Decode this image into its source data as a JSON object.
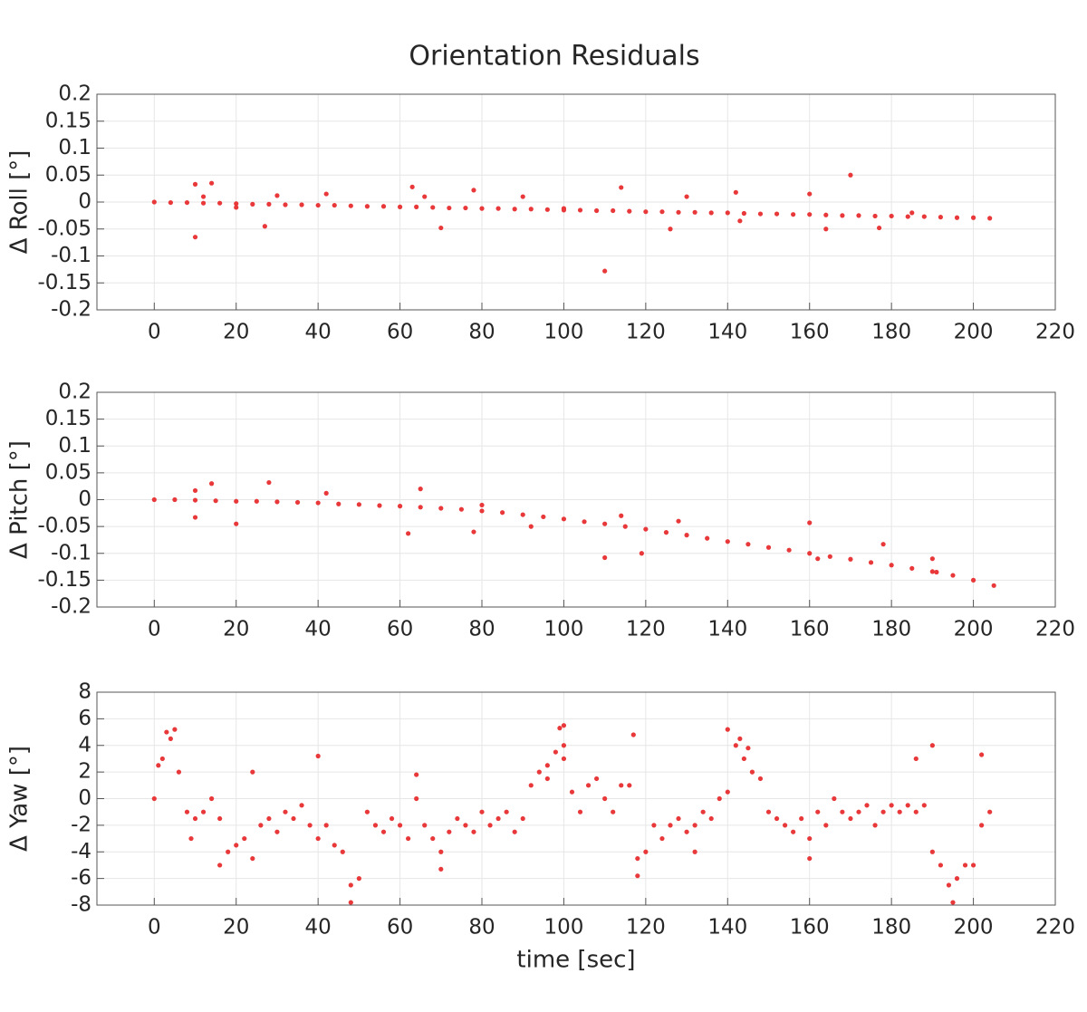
{
  "chart_data": [
    {
      "type": "scatter",
      "title": "Orientation Residuals",
      "ylabel": "Δ Roll [°]",
      "color": "#e8383a",
      "grid": true,
      "xlim": [
        -14,
        220
      ],
      "xticks": [
        0,
        20,
        40,
        60,
        80,
        100,
        120,
        140,
        160,
        180,
        200,
        220
      ],
      "ylim": [
        -0.2,
        0.2
      ],
      "yticks": [
        0.2,
        0.15,
        0.1,
        0.05,
        0,
        -0.05,
        -0.1,
        -0.15,
        -0.2
      ],
      "x": [
        0,
        4,
        8,
        12,
        16,
        20,
        24,
        28,
        32,
        36,
        40,
        44,
        48,
        52,
        56,
        60,
        64,
        68,
        72,
        76,
        80,
        84,
        88,
        92,
        96,
        100,
        104,
        108,
        112,
        116,
        120,
        124,
        128,
        132,
        136,
        140,
        144,
        148,
        152,
        156,
        160,
        164,
        168,
        172,
        176,
        180,
        184,
        188,
        192,
        196,
        200,
        204,
        10,
        10,
        14,
        27,
        30,
        42,
        63,
        70,
        78,
        110,
        114,
        126,
        142,
        143,
        160,
        164,
        170,
        177,
        12,
        20,
        66,
        90,
        100,
        130,
        185
      ],
      "values": [
        0,
        -0.001,
        -0.001,
        -0.002,
        -0.002,
        -0.003,
        -0.004,
        -0.004,
        -0.005,
        -0.005,
        -0.006,
        -0.006,
        -0.007,
        -0.008,
        -0.008,
        -0.009,
        -0.009,
        -0.01,
        -0.011,
        -0.011,
        -0.012,
        -0.012,
        -0.013,
        -0.013,
        -0.014,
        -0.015,
        -0.015,
        -0.016,
        -0.016,
        -0.017,
        -0.018,
        -0.018,
        -0.019,
        -0.019,
        -0.02,
        -0.02,
        -0.021,
        -0.022,
        -0.022,
        -0.023,
        -0.023,
        -0.024,
        -0.025,
        -0.025,
        -0.026,
        -0.026,
        -0.027,
        -0.027,
        -0.028,
        -0.029,
        -0.029,
        -0.03,
        0.033,
        -0.065,
        0.035,
        -0.045,
        0.012,
        0.015,
        0.028,
        -0.048,
        0.022,
        -0.128,
        0.027,
        -0.05,
        0.018,
        -0.035,
        0.015,
        -0.05,
        0.05,
        -0.048,
        0.01,
        -0.01,
        0.01,
        0.01,
        -0.012,
        0.01,
        -0.02
      ]
    },
    {
      "type": "scatter",
      "ylabel": "Δ Pitch [°]",
      "color": "#e8383a",
      "grid": true,
      "xlim": [
        -14,
        220
      ],
      "xticks": [
        0,
        20,
        40,
        60,
        80,
        100,
        120,
        140,
        160,
        180,
        200,
        220
      ],
      "ylim": [
        -0.2,
        0.2
      ],
      "yticks": [
        0.2,
        0.15,
        0.1,
        0.05,
        0,
        -0.05,
        -0.1,
        -0.15,
        -0.2
      ],
      "x": [
        0,
        5,
        10,
        15,
        20,
        25,
        30,
        35,
        40,
        45,
        50,
        55,
        60,
        65,
        70,
        75,
        80,
        85,
        90,
        95,
        100,
        105,
        110,
        115,
        120,
        125,
        130,
        135,
        140,
        145,
        150,
        155,
        160,
        165,
        170,
        175,
        180,
        185,
        190,
        195,
        200,
        205,
        10,
        10,
        14,
        20,
        28,
        42,
        62,
        65,
        78,
        80,
        92,
        110,
        114,
        119,
        128,
        160,
        162,
        178,
        190,
        191
      ],
      "values": [
        0,
        0,
        -0.001,
        -0.002,
        -0.003,
        -0.003,
        -0.004,
        -0.005,
        -0.006,
        -0.008,
        -0.009,
        -0.011,
        -0.012,
        -0.014,
        -0.016,
        -0.018,
        -0.021,
        -0.024,
        -0.028,
        -0.032,
        -0.036,
        -0.041,
        -0.045,
        -0.05,
        -0.055,
        -0.061,
        -0.066,
        -0.072,
        -0.078,
        -0.083,
        -0.089,
        -0.094,
        -0.1,
        -0.106,
        -0.111,
        -0.117,
        -0.122,
        -0.128,
        -0.134,
        -0.141,
        -0.15,
        -0.16,
        0.017,
        -0.033,
        0.03,
        -0.045,
        0.032,
        0.012,
        -0.063,
        0.02,
        -0.06,
        -0.01,
        -0.05,
        -0.108,
        -0.03,
        -0.1,
        -0.04,
        -0.043,
        -0.11,
        -0.083,
        -0.11,
        -0.135
      ]
    },
    {
      "type": "scatter",
      "ylabel": "Δ Yaw [°]",
      "xlabel": "time [sec]",
      "color": "#e8383a",
      "grid": true,
      "xlim": [
        -14,
        220
      ],
      "xticks": [
        0,
        20,
        40,
        60,
        80,
        100,
        120,
        140,
        160,
        180,
        200,
        220
      ],
      "ylim": [
        -8,
        8
      ],
      "yticks": [
        8,
        6,
        4,
        2,
        0,
        -2,
        -4,
        -6,
        -8
      ],
      "x": [
        0,
        2,
        4,
        6,
        8,
        10,
        12,
        14,
        16,
        18,
        20,
        22,
        24,
        26,
        28,
        30,
        32,
        34,
        36,
        38,
        40,
        42,
        44,
        46,
        48,
        50,
        52,
        54,
        56,
        58,
        60,
        62,
        64,
        66,
        68,
        70,
        72,
        74,
        76,
        78,
        80,
        82,
        84,
        86,
        88,
        90,
        92,
        94,
        96,
        98,
        100,
        102,
        104,
        106,
        108,
        110,
        112,
        114,
        116,
        118,
        120,
        122,
        124,
        126,
        128,
        130,
        132,
        134,
        136,
        138,
        140,
        142,
        144,
        146,
        148,
        150,
        152,
        154,
        156,
        158,
        160,
        162,
        164,
        166,
        168,
        170,
        172,
        174,
        176,
        178,
        180,
        182,
        184,
        186,
        188,
        190,
        192,
        194,
        196,
        198,
        200,
        202,
        204,
        3,
        5,
        1,
        99,
        100,
        117,
        140,
        143,
        145,
        190,
        202,
        48,
        195,
        118,
        40,
        24,
        64,
        9,
        16,
        70,
        132,
        160,
        186,
        100,
        96
      ],
      "values": [
        0,
        3,
        4.5,
        2,
        -1,
        -1.5,
        -1,
        0,
        -1.5,
        -4,
        -3.5,
        -3,
        -4.5,
        -2,
        -1.5,
        -2.5,
        -1,
        -1.5,
        -0.5,
        -2,
        -3,
        -2,
        -3.5,
        -4,
        -6.5,
        -6,
        -1,
        -2,
        -2.5,
        -1.5,
        -2,
        -3,
        0,
        -2,
        -3,
        -4,
        -2.5,
        -1.5,
        -2,
        -2.5,
        -1,
        -2,
        -1.5,
        -1,
        -2.5,
        -1.5,
        1,
        2,
        2.5,
        3.5,
        4,
        0.5,
        -1,
        1,
        1.5,
        0,
        -1,
        1,
        1,
        -4.5,
        -4,
        -2,
        -3,
        -2,
        -1.5,
        -2.5,
        -2,
        -1,
        -1.5,
        0,
        0.5,
        4,
        3,
        2,
        1.5,
        -1,
        -1.5,
        -2,
        -2.5,
        -1.5,
        -3,
        -1,
        -2,
        0,
        -1,
        -1.5,
        -1,
        -0.5,
        -2,
        -1,
        -0.5,
        -1,
        -0.5,
        -1,
        -0.5,
        -4,
        -5,
        -6.5,
        -6,
        -5,
        -5,
        -2,
        -1,
        5,
        5.2,
        2.5,
        5.3,
        5.5,
        4.8,
        5.2,
        4.5,
        3.8,
        4,
        3.3,
        -7.8,
        -7.8,
        -5.8,
        3.2,
        2,
        1.8,
        -3,
        -5,
        -5.3,
        -4,
        -4.5,
        3,
        3,
        1.5
      ]
    }
  ]
}
